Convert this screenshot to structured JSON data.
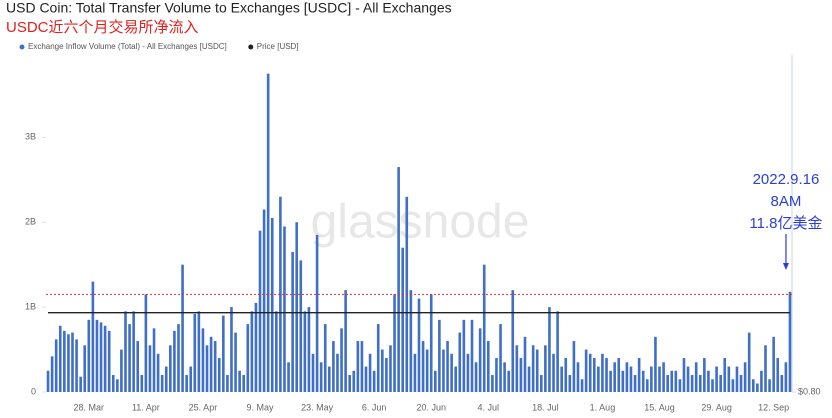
{
  "chart_data": {
    "type": "bar",
    "title": "USD Coin: Total Transfer Volume to Exchanges [USDC] - All Exchanges",
    "subtitle": "USDC近六个月交易所净流入",
    "watermark": "glassnode",
    "categories": [
      null,
      null,
      null,
      null,
      null,
      null,
      null,
      null,
      null,
      null,
      "28. Mar",
      null,
      null,
      null,
      null,
      null,
      null,
      null,
      null,
      null,
      null,
      null,
      null,
      null,
      "11. Apr",
      null,
      null,
      null,
      null,
      null,
      null,
      null,
      null,
      null,
      null,
      null,
      null,
      null,
      "25. Apr",
      null,
      null,
      null,
      null,
      null,
      null,
      null,
      null,
      null,
      null,
      null,
      null,
      null,
      "9. May",
      null,
      null,
      null,
      null,
      null,
      null,
      null,
      null,
      null,
      null,
      null,
      null,
      null,
      "23. May",
      null,
      null,
      null,
      null,
      null,
      null,
      null,
      null,
      null,
      null,
      null,
      null,
      null,
      "6. Jun",
      null,
      null,
      null,
      null,
      null,
      null,
      null,
      null,
      null,
      null,
      null,
      null,
      null,
      "20. Jun",
      null,
      null,
      null,
      null,
      null,
      null,
      null,
      null,
      null,
      null,
      null,
      null,
      null,
      "4. Jul",
      null,
      null,
      null,
      null,
      null,
      null,
      null,
      null,
      null,
      null,
      null,
      null,
      null,
      "18. Jul",
      null,
      null,
      null,
      null,
      null,
      null,
      null,
      null,
      null,
      null,
      null,
      null,
      null,
      "1. Aug",
      null,
      null,
      null,
      null,
      null,
      null,
      null,
      null,
      null,
      null,
      null,
      null,
      null,
      "15. Aug",
      null,
      null,
      null,
      null,
      null,
      null,
      null,
      null,
      null,
      null,
      null,
      null,
      null,
      "29. Aug",
      null,
      null,
      null,
      null,
      null,
      null,
      null,
      null,
      null,
      null,
      null,
      null,
      null,
      "12. Sep",
      null,
      null,
      null,
      null
    ],
    "series": [
      {
        "name": "Exchange Inflow Volume (Total) - All Exchanges [USDC]",
        "color": "#3f6fc6",
        "values": [
          0.25,
          0.42,
          0.62,
          0.78,
          0.72,
          0.68,
          0.7,
          0.62,
          0.18,
          0.55,
          0.85,
          1.3,
          0.85,
          0.82,
          0.78,
          0.72,
          0.2,
          0.15,
          0.5,
          0.95,
          0.8,
          0.95,
          0.6,
          0.2,
          1.15,
          0.55,
          0.75,
          0.45,
          0.2,
          0.3,
          0.55,
          0.72,
          0.8,
          1.5,
          0.2,
          0.3,
          0.92,
          0.95,
          0.75,
          0.55,
          0.65,
          0.6,
          0.4,
          0.9,
          0.2,
          1.0,
          0.7,
          0.25,
          0.2,
          0.8,
          0.95,
          1.05,
          1.9,
          2.15,
          3.75,
          2.05,
          0.95,
          2.3,
          1.95,
          0.35,
          1.65,
          2.0,
          1.55,
          0.95,
          1.0,
          0.45,
          1.85,
          0.35,
          0.8,
          0.3,
          0.6,
          0.45,
          0.75,
          1.2,
          0.2,
          0.25,
          0.6,
          0.6,
          0.3,
          0.45,
          0.25,
          0.8,
          0.5,
          0.4,
          0.55,
          1.15,
          2.65,
          1.7,
          2.3,
          1.2,
          0.45,
          1.1,
          0.6,
          0.5,
          1.15,
          0.25,
          0.85,
          0.5,
          0.6,
          0.45,
          0.3,
          0.7,
          0.85,
          0.45,
          0.85,
          0.35,
          0.75,
          1.5,
          0.6,
          0.2,
          0.4,
          0.8,
          0.35,
          0.25,
          1.2,
          0.55,
          0.4,
          0.65,
          0.3,
          0.55,
          0.5,
          0.2,
          0.55,
          1.0,
          0.45,
          0.95,
          0.3,
          0.4,
          0.2,
          0.6,
          0.35,
          0.15,
          0.5,
          0.45,
          0.4,
          0.3,
          0.45,
          0.4,
          0.25,
          0.35,
          0.4,
          0.25,
          0.35,
          0.3,
          0.2,
          0.4,
          0.25,
          0.15,
          0.3,
          0.65,
          0.3,
          0.35,
          0.2,
          0.25,
          0.25,
          0.15,
          0.4,
          0.3,
          0.2,
          0.35,
          0.2,
          0.4,
          0.25,
          0.15,
          0.3,
          0.2,
          0.4,
          0.3,
          0.15,
          0.3,
          0.2,
          0.35,
          0.7,
          0.15,
          0.1,
          0.25,
          0.55,
          0.15,
          0.65,
          0.4,
          0.2,
          0.35,
          1.18
        ]
      },
      {
        "name": "Price [USD]",
        "color": "#222222",
        "axis": "y2",
        "type": "line",
        "values": [
          1,
          1,
          1,
          1,
          1,
          1,
          1,
          1,
          1,
          1,
          1,
          1,
          1,
          1,
          1,
          1,
          1,
          1,
          1,
          1,
          1,
          1,
          1,
          1,
          1,
          1,
          1,
          1,
          1,
          1,
          1,
          1,
          1,
          1,
          1,
          1,
          1,
          1,
          1,
          1,
          1,
          1,
          1,
          1,
          1,
          1,
          1,
          1,
          1,
          1,
          1,
          1,
          1,
          1,
          1,
          1,
          1,
          1,
          1,
          1,
          1,
          1,
          1,
          1,
          1,
          1,
          1,
          1,
          1,
          1,
          1,
          1,
          1,
          1,
          1,
          1,
          1,
          1,
          1,
          1,
          1,
          1,
          1,
          1,
          1,
          1,
          1,
          1,
          1,
          1,
          1,
          1,
          1,
          1,
          1,
          1,
          1,
          1,
          1,
          1,
          1,
          1,
          1,
          1,
          1,
          1,
          1,
          1,
          1,
          1,
          1,
          1,
          1,
          1,
          1,
          1,
          1,
          1,
          1,
          1,
          1,
          1,
          1,
          1,
          1,
          1,
          1,
          1,
          1,
          1,
          1,
          1,
          1,
          1,
          1,
          1,
          1,
          1,
          1,
          1,
          1,
          1,
          1,
          1,
          1,
          1,
          1,
          1,
          1,
          1,
          1,
          1,
          1,
          1,
          1,
          1,
          1,
          1,
          1,
          1,
          1,
          1,
          1,
          1,
          1,
          1,
          1,
          1,
          1,
          1,
          1,
          1,
          1,
          1,
          1,
          1,
          1,
          1,
          1,
          1,
          1,
          1,
          1
        ]
      }
    ],
    "ylim": [
      0,
      3.97
    ],
    "yticks": [
      0,
      {
        "value": 1,
        "label": "1B"
      },
      {
        "value": 2,
        "label": "2B"
      },
      {
        "value": 3,
        "label": "3B"
      }
    ],
    "y2lim": [
      0.8,
      1.65
    ],
    "y2ticks": [
      {
        "value": 0.8,
        "label": "$0.80"
      }
    ],
    "reference_line": {
      "value": 1.15,
      "color": "#e03030"
    },
    "annotation": {
      "lines": [
        "2022.9.16",
        "8AM",
        "11.8亿美金"
      ],
      "color": "#2b3fd6",
      "index": 182
    }
  }
}
